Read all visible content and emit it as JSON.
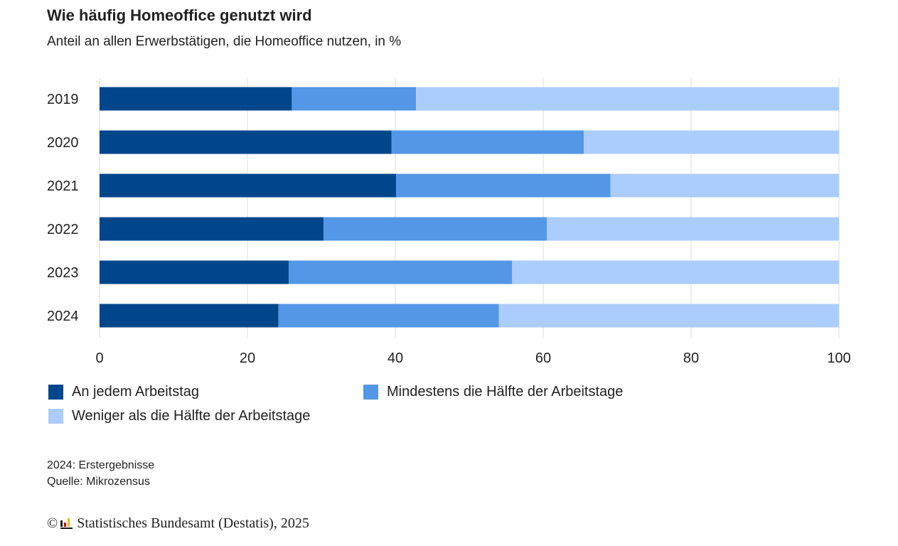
{
  "header": {
    "title": "Wie häufig Homeoffice genutzt wird",
    "subtitle": "Anteil an allen Erwerbstätigen, die Homeoffice nutzen, in %"
  },
  "chart_data": {
    "type": "bar",
    "orientation": "horizontal",
    "stacked": true,
    "title": "Wie häufig Homeoffice genutzt wird",
    "subtitle": "Anteil an allen Erwerbstätigen, die Homeoffice nutzen, in %",
    "categories": [
      "2019",
      "2020",
      "2021",
      "2022",
      "2023",
      "2024"
    ],
    "series": [
      {
        "name": "An jedem Arbeitstag",
        "color": "#00468b",
        "values": [
          26,
          39.5,
          40.1,
          30.3,
          25.6,
          24.2
        ]
      },
      {
        "name": "Mindestens die Hälfte der Arbeitstage",
        "color": "#5397e6",
        "values": [
          16.8,
          26,
          29,
          30.2,
          30.2,
          29.8
        ]
      },
      {
        "name": "Weniger als die Hälfte der Arbeitstage",
        "color": "#abcdfd",
        "values": [
          57.2,
          34.5,
          30.9,
          39.5,
          44.2,
          46
        ]
      }
    ],
    "xlim": [
      0,
      100
    ],
    "xticks": [
      0,
      20,
      40,
      60,
      80,
      100
    ],
    "xlabel": "",
    "ylabel": "",
    "grid": true,
    "legend_position": "bottom"
  },
  "notes": {
    "line1": "2024: Erstergebnisse",
    "line2": "Quelle: Mikrozensus"
  },
  "copyright": {
    "symbol": "©",
    "text": "Statistisches Bundesamt (Destatis), 2025"
  }
}
